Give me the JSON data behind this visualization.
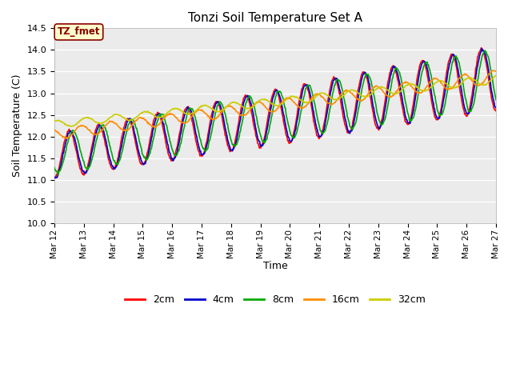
{
  "title": "Tonzi Soil Temperature Set A",
  "xlabel": "Time",
  "ylabel": "Soil Temperature (C)",
  "ylim": [
    10.0,
    14.5
  ],
  "annotation_text": "TZ_fmet",
  "annotation_color": "#8B0000",
  "annotation_bg": "#FFFFCC",
  "annotation_border": "#8B0000",
  "legend_labels": [
    "2cm",
    "4cm",
    "8cm",
    "16cm",
    "32cm"
  ],
  "line_colors": [
    "#FF0000",
    "#0000CC",
    "#00AA00",
    "#FF8C00",
    "#CCCC00"
  ],
  "bg_color": "#FFFFFF",
  "plot_bg": "#EBEBEB",
  "x_start": 12,
  "x_end": 27,
  "x_ticks": [
    12,
    13,
    14,
    15,
    16,
    17,
    18,
    19,
    20,
    21,
    22,
    23,
    24,
    25,
    26,
    27
  ],
  "x_tick_labels": [
    "Mar 12",
    "Mar 13",
    "Mar 14",
    "Mar 15",
    "Mar 16",
    "Mar 17",
    "Mar 18",
    "Mar 19",
    "Mar 20",
    "Mar 21",
    "Mar 22",
    "Mar 23",
    "Mar 24",
    "Mar 25",
    "Mar 26",
    "Mar 27"
  ],
  "yticks": [
    10.0,
    10.5,
    11.0,
    11.5,
    12.0,
    12.5,
    13.0,
    13.5,
    14.0,
    14.5
  ]
}
